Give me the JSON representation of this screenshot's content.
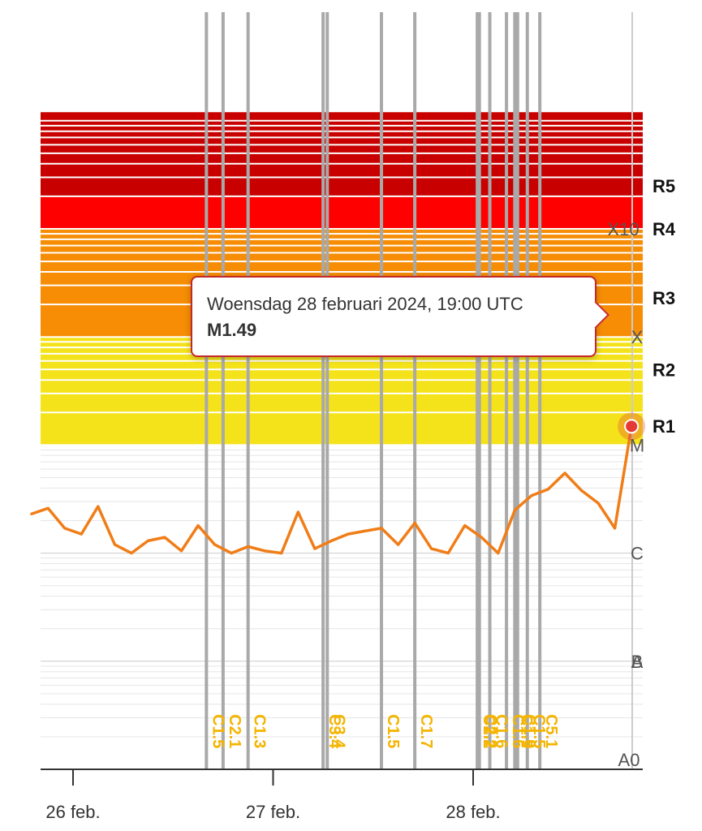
{
  "chart_data": {
    "type": "line",
    "title": "",
    "xlabel": "",
    "ylabel": "",
    "y_scale": "log",
    "x_ticks": [
      "26 feb.",
      "27 feb.",
      "28 feb."
    ],
    "class_labels": [
      "X10",
      "X",
      "M",
      "C",
      "B",
      "A",
      "A0"
    ],
    "radio_blackout_scale": [
      "R5",
      "R4",
      "R3",
      "R2",
      "R1"
    ],
    "band_colors": {
      "R1": "#f4e21a",
      "R2": "#f4e21a",
      "R3": "#f68d05",
      "R4": "#fe0000",
      "R5": "#c80000"
    },
    "series": [
      {
        "color": "#f07d17",
        "x": [
          "2024-02-25T19:00",
          "2024-02-25T21:00",
          "2024-02-25T23:00",
          "2024-02-26T01:00",
          "2024-02-26T03:00",
          "2024-02-26T05:00",
          "2024-02-26T07:00",
          "2024-02-26T09:00",
          "2024-02-26T11:00",
          "2024-02-26T13:00",
          "2024-02-26T15:00",
          "2024-02-26T17:00",
          "2024-02-26T19:00",
          "2024-02-26T21:00",
          "2024-02-26T23:00",
          "2024-02-27T01:00",
          "2024-02-27T03:00",
          "2024-02-27T05:00",
          "2024-02-27T07:00",
          "2024-02-27T09:00",
          "2024-02-27T11:00",
          "2024-02-27T13:00",
          "2024-02-27T15:00",
          "2024-02-27T17:00",
          "2024-02-27T19:00",
          "2024-02-27T21:00",
          "2024-02-27T23:00",
          "2024-02-28T01:00",
          "2024-02-28T03:00",
          "2024-02-28T05:00",
          "2024-02-28T07:00",
          "2024-02-28T09:00",
          "2024-02-28T11:00",
          "2024-02-28T13:00",
          "2024-02-28T15:00",
          "2024-02-28T17:00",
          "2024-02-28T19:00"
        ],
        "y": [
          2.3e-06,
          2.6e-06,
          1.7e-06,
          1.5e-06,
          2.7e-06,
          1.2e-06,
          1e-06,
          1.3e-06,
          1.4e-06,
          1.05e-06,
          1.8e-06,
          1.2e-06,
          1e-06,
          1.15e-06,
          1.05e-06,
          1e-06,
          2.4e-06,
          1.1e-06,
          1.3e-06,
          1.5e-06,
          1.6e-06,
          1.7e-06,
          1.2e-06,
          1.9e-06,
          1.1e-06,
          1e-06,
          1.8e-06,
          1.4e-06,
          1e-06,
          2.5e-06,
          3.4e-06,
          3.9e-06,
          5.5e-06,
          3.8e-06,
          2.9e-06,
          1.7e-06,
          1.49e-05
        ]
      }
    ],
    "flares": [
      {
        "time": "2024-02-26T16:00",
        "class": "C1.5"
      },
      {
        "time": "2024-02-26T18:00",
        "class": "C2.1"
      },
      {
        "time": "2024-02-26T21:00",
        "class": "C1.3"
      },
      {
        "time": "2024-02-27T06:00",
        "class": "C3.4"
      },
      {
        "time": "2024-02-27T06:30",
        "class": "C3.4"
      },
      {
        "time": "2024-02-27T13:00",
        "class": "C1.5"
      },
      {
        "time": "2024-02-27T17:00",
        "class": "C1.7"
      },
      {
        "time": "2024-02-28T00:30",
        "class": "C2.2"
      },
      {
        "time": "2024-02-28T00:45",
        "class": "C2.2"
      },
      {
        "time": "2024-02-28T02:00",
        "class": "C1.6"
      },
      {
        "time": "2024-02-28T04:00",
        "class": "C1.6"
      },
      {
        "time": "2024-02-28T05:00",
        "class": "C1.9"
      },
      {
        "time": "2024-02-28T05:20",
        "class": "C1.9"
      },
      {
        "time": "2024-02-28T06:30",
        "class": "C1.5"
      },
      {
        "time": "2024-02-28T08:00",
        "class": "C5.1"
      }
    ],
    "tooltip": {
      "date": "Woensdag 28 februari 2024, 19:00 UTC",
      "value": "M1.49"
    }
  }
}
